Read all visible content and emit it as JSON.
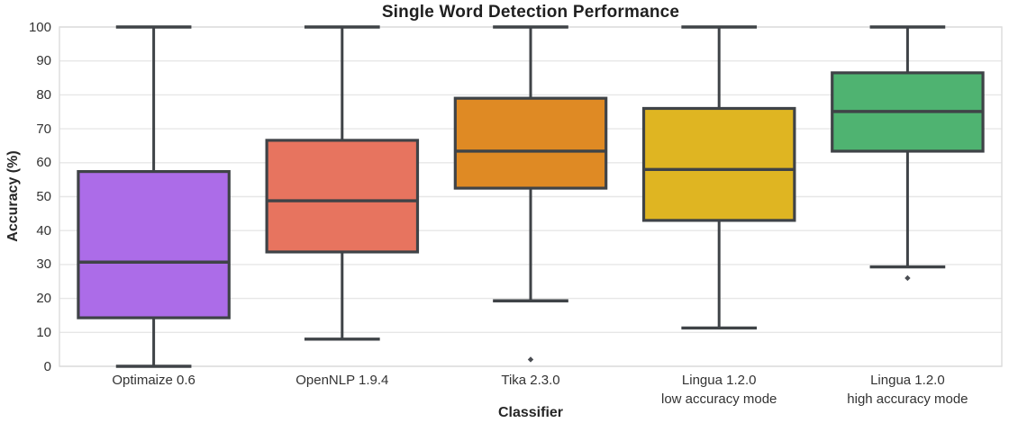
{
  "chart_data": {
    "type": "boxplot",
    "title": "Single Word Detection Performance",
    "xlabel": "Classifier",
    "ylabel": "Accuracy (%)",
    "ylim": [
      0,
      100
    ],
    "yticks": [
      0,
      10,
      20,
      30,
      40,
      50,
      60,
      70,
      80,
      90,
      100
    ],
    "grid": true,
    "legend": "none",
    "edge_color": "#3f4347",
    "grid_color": "#e7e7e7",
    "spine_color": "#dcdcdc",
    "categories": [
      [
        "Optimaize 0.6"
      ],
      [
        "OpenNLP 1.9.4"
      ],
      [
        "Tika 2.3.0"
      ],
      [
        "Lingua 1.2.0",
        "low accuracy mode"
      ],
      [
        "Lingua 1.2.0",
        "high accuracy mode"
      ]
    ],
    "boxes": [
      {
        "label": "Optimaize 0.6",
        "color": "#ac6ce8",
        "whisker_low": 0,
        "q1": 14.3,
        "median": 30.7,
        "q3": 57.4,
        "whisker_high": 100,
        "outliers": []
      },
      {
        "label": "OpenNLP 1.9.4",
        "color": "#e7745f",
        "whisker_low": 8,
        "q1": 33.7,
        "median": 48.8,
        "q3": 66.6,
        "whisker_high": 100,
        "outliers": []
      },
      {
        "label": "Tika 2.3.0",
        "color": "#df8a24",
        "whisker_low": 19.3,
        "q1": 52.5,
        "median": 63.4,
        "q3": 79,
        "whisker_high": 100,
        "outliers": [
          2
        ]
      },
      {
        "label": "Lingua 1.2.0 low accuracy mode",
        "color": "#dfb522",
        "whisker_low": 11.3,
        "q1": 43,
        "median": 58,
        "q3": 76,
        "whisker_high": 100,
        "outliers": []
      },
      {
        "label": "Lingua 1.2.0 high accuracy mode",
        "color": "#4fb371",
        "whisker_low": 29.3,
        "q1": 63.4,
        "median": 75.1,
        "q3": 86.5,
        "whisker_high": 100,
        "outliers": [
          26
        ]
      }
    ]
  }
}
